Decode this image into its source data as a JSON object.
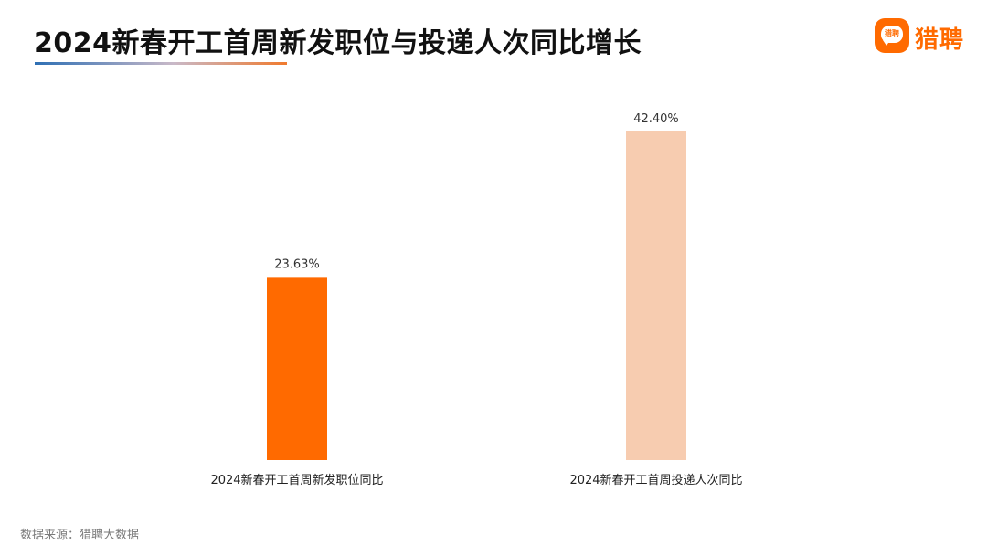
{
  "header": {
    "title": "2024新春开工首周新发职位与投递人次同比增长"
  },
  "logo": {
    "badge_text": "猎聘",
    "brand_text": "猎聘",
    "icon": "chat-bubble-logo-icon"
  },
  "chart_data": {
    "type": "bar",
    "categories": [
      "2024新春开工首周新发职位同比",
      "2024新春开工首周投递人次同比"
    ],
    "values": [
      23.63,
      42.4
    ],
    "value_labels": [
      "23.63%",
      "42.40%"
    ],
    "bar_colors": [
      "#ff6a00",
      "#f7ccb0"
    ],
    "ylim": [
      0,
      45
    ],
    "grid": false,
    "legend": "none",
    "xlabel": "",
    "ylabel": ""
  },
  "footer": {
    "source": "数据来源：猎聘大数据"
  },
  "colors": {
    "brand": "#ff6a00",
    "title_text": "#111111",
    "source_text": "#7a7a7a"
  }
}
